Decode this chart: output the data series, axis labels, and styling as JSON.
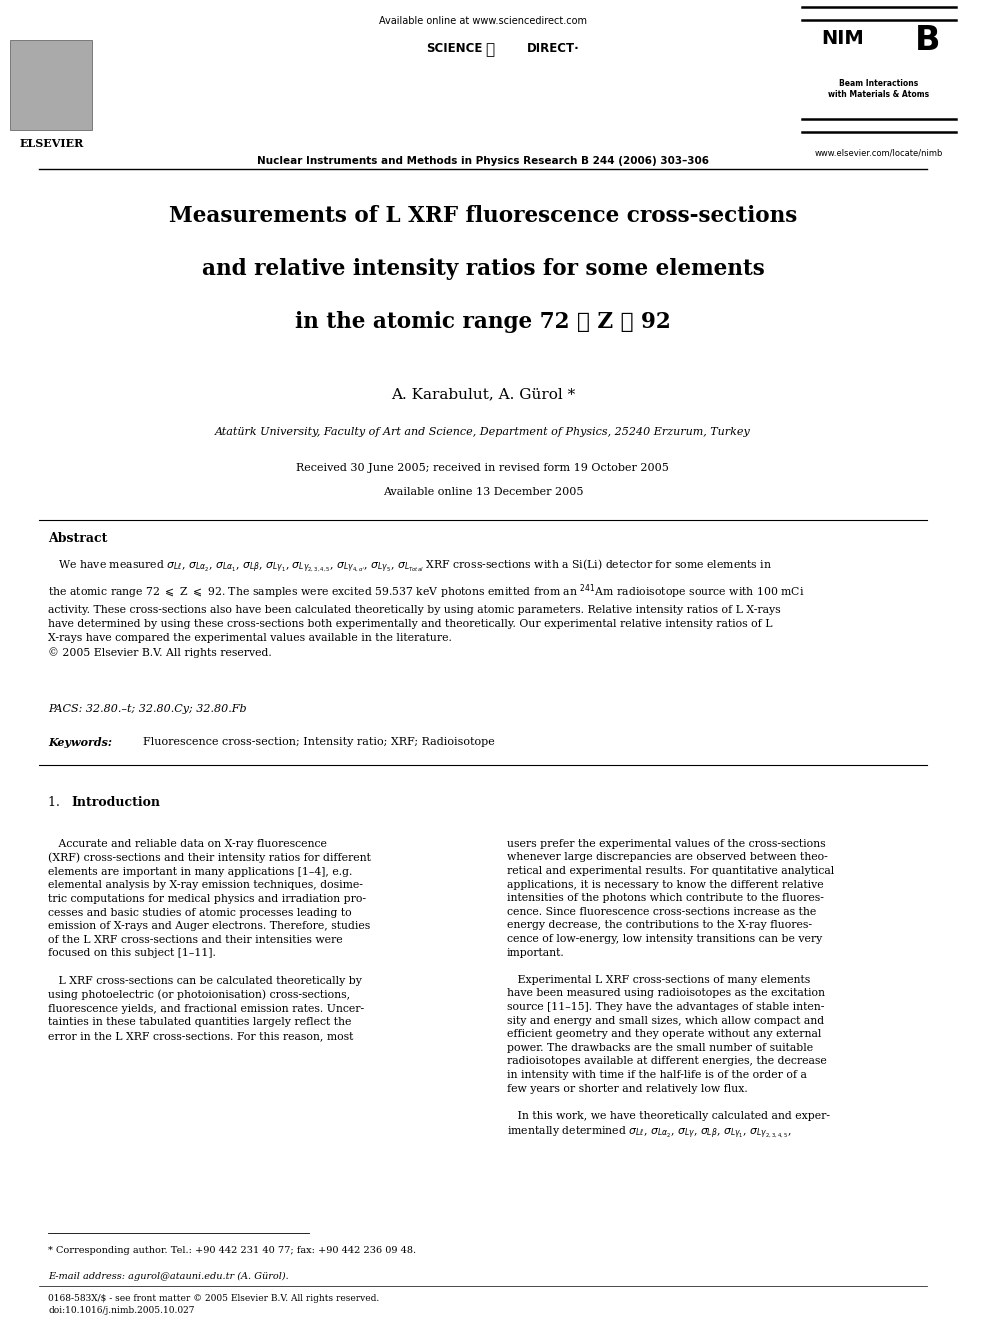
{
  "bg_color": "#ffffff",
  "page_width": 9.92,
  "page_height": 13.23,
  "header": {
    "available_online": "Available online at www.sciencedirect.com",
    "journal_name": "Nuclear Instruments and Methods in Physics Research B 244 (2006) 303–306",
    "elsevier_text": "ELSEVIER",
    "nimb_text": "NIM B",
    "nimb_subtitle": "Beam Interactions\nwith Materials & Atoms",
    "website": "www.elsevier.com/locate/nimb",
    "sciencedirect_text": "SCIENCE ⓓ DIRECT·"
  },
  "title_lines": [
    "Measurements of L XRF fluorescence cross-sections",
    "and relative intensity ratios for some elements",
    "in the atomic range 72 ⩽ Z ⩽ 92"
  ],
  "authors": "A. Karabulut, A. Gürol *",
  "affiliation": "Atatürk University, Faculty of Art and Science, Department of Physics, 25240 Erzurum, Turkey",
  "received": "Received 30 June 2005; received in revised form 19 October 2005",
  "available_online_date": "Available online 13 December 2005",
  "abstract_title": "Abstract",
  "pacs": "PACS: 32.80.–t; 32.80.Cy; 32.80.Fb",
  "keywords_label": "Keywords:  ",
  "keywords_body": "Fluorescence cross-section; Intensity ratio; XRF; Radioisotope",
  "footnote_star": "* Corresponding author. Tel.: +90 442 231 40 77; fax: +90 442 236 09 48.",
  "footnote_email": "E-mail address: agurol@atauni.edu.tr (A. Gürol).",
  "footer_left": "0168-583X/$ - see front matter © 2005 Elsevier B.V. All rights reserved.\ndoi:10.1016/j.nimb.2005.10.027"
}
